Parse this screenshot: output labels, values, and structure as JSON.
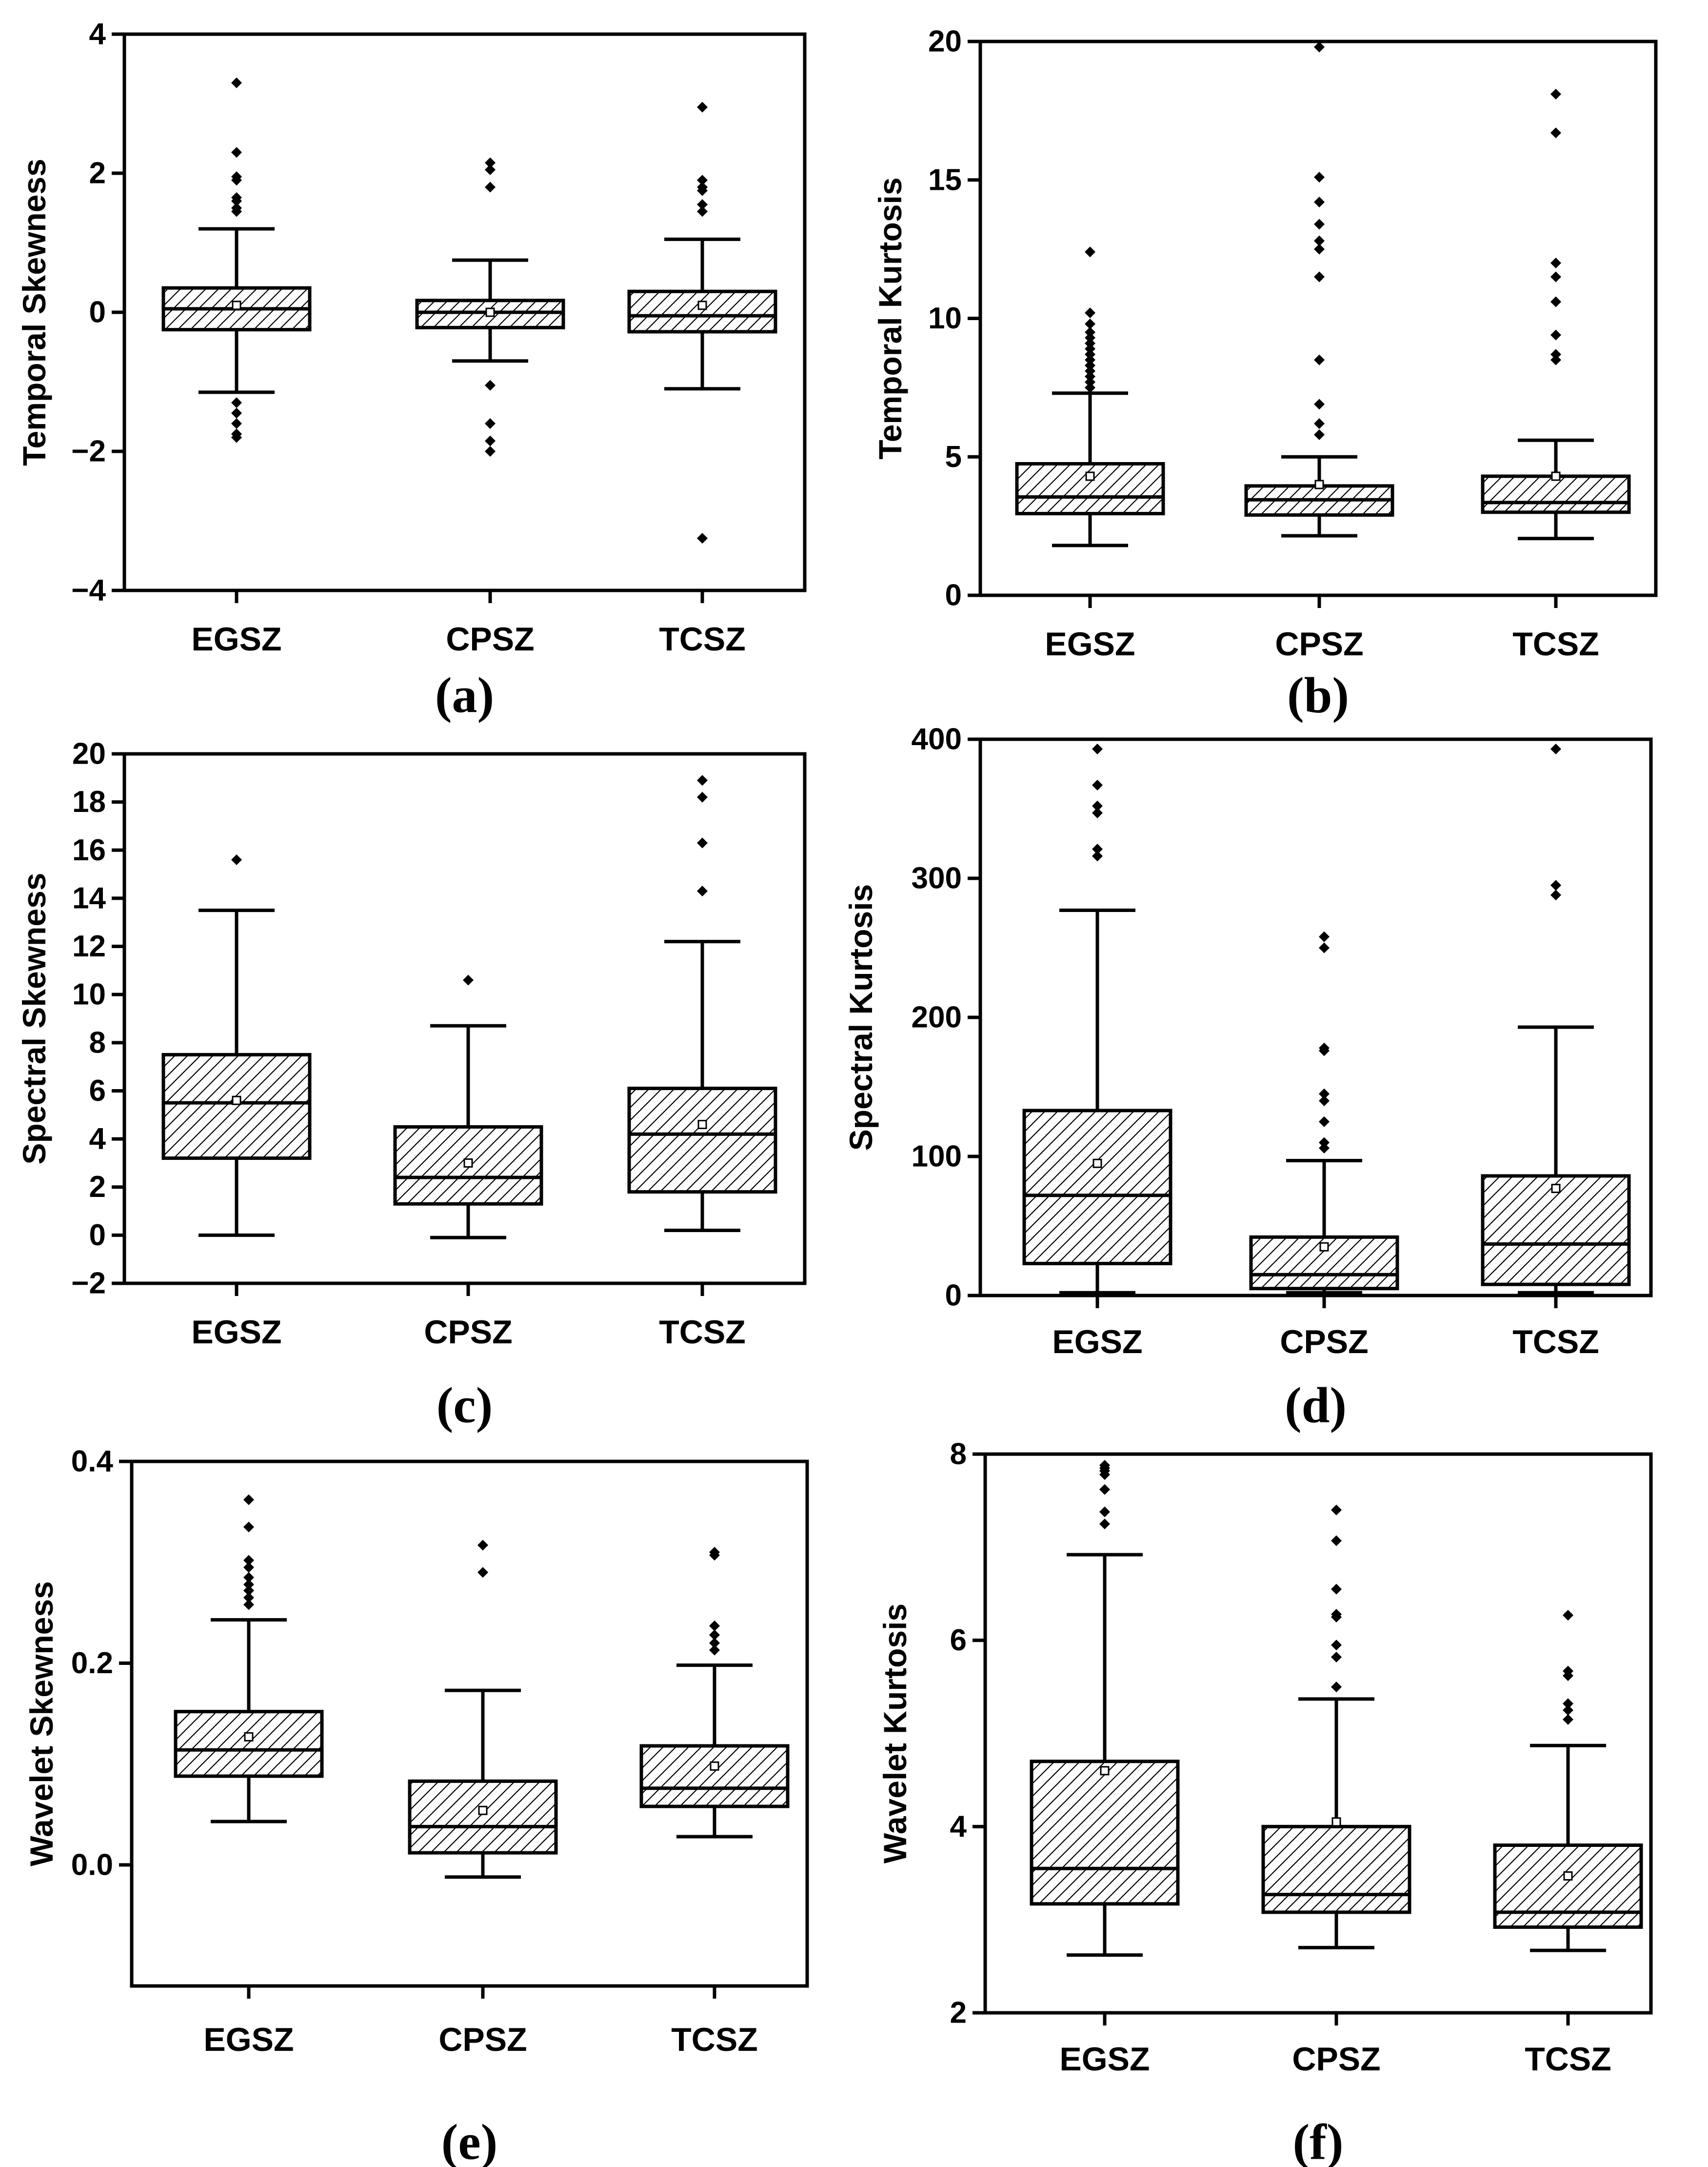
{
  "chart_data": [
    {
      "type": "box",
      "panel_label": "(a)",
      "ylabel": "Temporal Skewness",
      "categories": [
        "EGSZ",
        "CPSZ",
        "TCSZ"
      ],
      "ylim": [
        -4,
        4
      ],
      "yticks": [
        -4,
        -2,
        0,
        2,
        4
      ],
      "ytick_labels": [
        "−4",
        "−2",
        "0",
        "2",
        "4"
      ],
      "boxes": [
        {
          "whisker_low": -1.15,
          "q1": -0.25,
          "median": 0.05,
          "q3": 0.35,
          "whisker_high": 1.2,
          "mean": 0.1,
          "outliers": [
            3.3,
            2.3,
            1.95,
            1.9,
            1.65,
            1.6,
            1.5,
            1.45,
            -1.3,
            -1.45,
            -1.6,
            -1.75,
            -1.8
          ]
        },
        {
          "whisker_low": -0.7,
          "q1": -0.22,
          "median": 0.0,
          "q3": 0.17,
          "whisker_high": 0.75,
          "mean": 0.0,
          "outliers": [
            2.15,
            2.05,
            1.8,
            -1.05,
            -1.6,
            -1.85,
            -2.0
          ]
        },
        {
          "whisker_low": -1.1,
          "q1": -0.28,
          "median": -0.05,
          "q3": 0.3,
          "whisker_high": 1.05,
          "mean": 0.1,
          "outliers": [
            2.95,
            1.9,
            1.8,
            1.75,
            1.55,
            1.45,
            -3.25
          ]
        }
      ]
    },
    {
      "type": "box",
      "panel_label": "(b)",
      "ylabel": "Temporal Kurtosis",
      "categories": [
        "EGSZ",
        "CPSZ",
        "TCSZ"
      ],
      "ylim": [
        0,
        20
      ],
      "yticks": [
        0,
        5,
        10,
        15,
        20
      ],
      "ytick_labels": [
        "0",
        "5",
        "10",
        "15",
        "20"
      ],
      "boxes": [
        {
          "whisker_low": 1.8,
          "q1": 2.95,
          "median": 3.55,
          "q3": 4.75,
          "whisker_high": 7.3,
          "mean": 4.3,
          "outliers": [
            12.4,
            10.2,
            9.8,
            9.5,
            9.3,
            9.1,
            8.9,
            8.7,
            8.5,
            8.3,
            8.1,
            7.9,
            7.7,
            7.5
          ]
        },
        {
          "whisker_low": 2.15,
          "q1": 2.9,
          "median": 3.45,
          "q3": 3.95,
          "whisker_high": 5.0,
          "mean": 4.0,
          "outliers": [
            19.8,
            15.1,
            14.2,
            13.4,
            12.8,
            12.5,
            11.5,
            8.5,
            6.9,
            6.2,
            5.8
          ]
        },
        {
          "whisker_low": 2.05,
          "q1": 3.0,
          "median": 3.35,
          "q3": 4.3,
          "whisker_high": 5.6,
          "mean": 4.3,
          "outliers": [
            18.1,
            16.7,
            12.0,
            11.5,
            10.6,
            9.4,
            8.7,
            8.5
          ]
        }
      ]
    },
    {
      "type": "box",
      "panel_label": "(c)",
      "ylabel": "Spectral Skewness",
      "categories": [
        "EGSZ",
        "CPSZ",
        "TCSZ"
      ],
      "ylim": [
        -2,
        20
      ],
      "yticks": [
        -2,
        0,
        2,
        4,
        6,
        8,
        10,
        12,
        14,
        16,
        18,
        20
      ],
      "ytick_labels": [
        "−2",
        "0",
        "2",
        "4",
        "6",
        "8",
        "10",
        "12",
        "14",
        "16",
        "18",
        "20"
      ],
      "boxes": [
        {
          "whisker_low": 0.0,
          "q1": 3.2,
          "median": 5.5,
          "q3": 7.5,
          "whisker_high": 13.5,
          "mean": 5.6,
          "outliers": [
            15.6
          ]
        },
        {
          "whisker_low": -0.1,
          "q1": 1.3,
          "median": 2.4,
          "q3": 4.5,
          "whisker_high": 8.7,
          "mean": 3.0,
          "outliers": [
            10.6
          ]
        },
        {
          "whisker_low": 0.2,
          "q1": 1.8,
          "median": 4.2,
          "q3": 6.1,
          "whisker_high": 12.2,
          "mean": 4.6,
          "outliers": [
            18.9,
            18.2,
            16.3,
            14.3
          ]
        }
      ]
    },
    {
      "type": "box",
      "panel_label": "(d)",
      "ylabel": "Spectral Kurtosis",
      "categories": [
        "EGSZ",
        "CPSZ",
        "TCSZ"
      ],
      "ylim": [
        0,
        400
      ],
      "yticks": [
        0,
        100,
        200,
        300,
        400
      ],
      "ytick_labels": [
        "0",
        "100",
        "200",
        "300",
        "400"
      ],
      "boxes": [
        {
          "whisker_low": 2,
          "q1": 23,
          "median": 72,
          "q3": 133,
          "whisker_high": 277,
          "mean": 95,
          "outliers": [
            393,
            367,
            352,
            347,
            321,
            316
          ]
        },
        {
          "whisker_low": 2,
          "q1": 5,
          "median": 15,
          "q3": 42,
          "whisker_high": 97,
          "mean": 35,
          "outliers": [
            258,
            250,
            178,
            176,
            145,
            140,
            125,
            110,
            106
          ]
        },
        {
          "whisker_low": 2,
          "q1": 8,
          "median": 37,
          "q3": 86,
          "whisker_high": 193,
          "mean": 77,
          "outliers": [
            393,
            295,
            288
          ]
        }
      ]
    },
    {
      "type": "box",
      "panel_label": "(e)",
      "ylabel": "Wavelet Skewness",
      "categories": [
        "EGSZ",
        "CPSZ",
        "TCSZ"
      ],
      "ylim": [
        -0.12,
        0.4
      ],
      "yticks": [
        0.0,
        0.2,
        0.4
      ],
      "ytick_labels": [
        "0.0",
        "0.2",
        "0.4"
      ],
      "boxes": [
        {
          "whisker_low": 0.043,
          "q1": 0.088,
          "median": 0.114,
          "q3": 0.152,
          "whisker_high": 0.243,
          "mean": 0.127,
          "outliers": [
            0.362,
            0.335,
            0.302,
            0.295,
            0.285,
            0.278,
            0.272,
            0.265,
            0.258
          ]
        },
        {
          "whisker_low": -0.012,
          "q1": 0.012,
          "median": 0.038,
          "q3": 0.083,
          "whisker_high": 0.173,
          "mean": 0.054,
          "outliers": [
            0.317,
            0.29
          ]
        },
        {
          "whisker_low": 0.028,
          "q1": 0.058,
          "median": 0.076,
          "q3": 0.118,
          "whisker_high": 0.198,
          "mean": 0.098,
          "outliers": [
            0.31,
            0.307,
            0.237,
            0.228,
            0.22,
            0.213
          ]
        }
      ]
    },
    {
      "type": "box",
      "panel_label": "(f)",
      "ylabel": "Wavelet Kurtosis",
      "categories": [
        "EGSZ",
        "CPSZ",
        "TCSZ"
      ],
      "ylim": [
        2,
        8
      ],
      "yticks": [
        2,
        4,
        6,
        8
      ],
      "ytick_labels": [
        "2",
        "4",
        "6",
        "8"
      ],
      "boxes": [
        {
          "whisker_low": 2.62,
          "q1": 3.17,
          "median": 3.55,
          "q3": 4.7,
          "whisker_high": 6.92,
          "mean": 4.6,
          "outliers": [
            7.88,
            7.85,
            7.82,
            7.78,
            7.62,
            7.38,
            7.25
          ]
        },
        {
          "whisker_low": 2.7,
          "q1": 3.08,
          "median": 3.27,
          "q3": 4.0,
          "whisker_high": 5.37,
          "mean": 4.05,
          "outliers": [
            7.4,
            7.07,
            6.55,
            6.28,
            6.25,
            5.95,
            5.82,
            5.5
          ]
        },
        {
          "whisker_low": 2.67,
          "q1": 2.92,
          "median": 3.08,
          "q3": 3.8,
          "whisker_high": 4.87,
          "mean": 3.47,
          "outliers": [
            6.27,
            5.67,
            5.62,
            5.32,
            5.25,
            5.15
          ]
        }
      ]
    }
  ]
}
